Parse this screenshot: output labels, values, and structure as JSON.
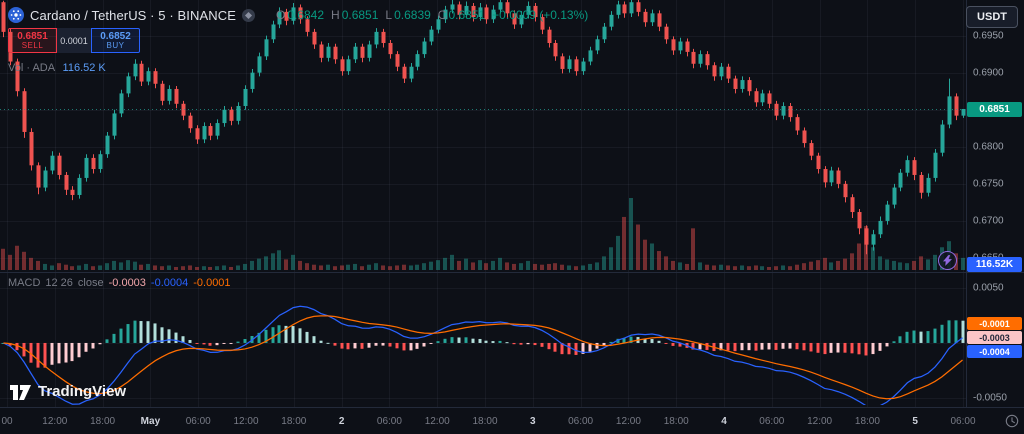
{
  "header": {
    "symbol_title": "Cardano / TetherUS · 5 · BINANCE",
    "ohlc_labels": {
      "o": "O",
      "h": "H",
      "l": "L",
      "c": "C"
    },
    "ohlc_values": {
      "o": "0.6842",
      "h": "0.6851",
      "l": "0.6839",
      "c": "0.6851"
    },
    "change": "+0.0009 (+0.13%)",
    "currency_button_label": "USDT"
  },
  "trade_panel": {
    "sell_price": "0.6851",
    "sell_label": "SELL",
    "spread": "0.0001",
    "buy_price": "0.6852",
    "buy_label": "BUY"
  },
  "volume_row": {
    "label": "Vol · ADA",
    "value": "116.52 K"
  },
  "macd_row": {
    "title": "MACD",
    "params": "12 26",
    "source": "close",
    "hist": "-0.0003",
    "macd": "-0.0004",
    "signal": "-0.0001"
  },
  "axis_badges": {
    "last_price": "0.6851",
    "volume": "116.52K",
    "signal": "-0.0001",
    "hist": "-0.0003",
    "macd": "-0.0004"
  },
  "watermark_text": "TradingView",
  "colors": {
    "background": "#0d1017",
    "grid": "rgba(151,166,195,0.07)",
    "axis_text": "#9aa0aa",
    "axis_text_major": "#cfd3dc",
    "muted_text": "#787b86",
    "title_text": "#dfe2e8",
    "up": "#26a69a",
    "down": "#ef5350",
    "up_text": "#089981",
    "sell": "#f23645",
    "buy_border": "#2962ff",
    "buy_text": "#5b9cf6",
    "spread_bg": "#1b2130",
    "volume_value": "#5b9cf6",
    "volume_badge_bg": "#2962ff",
    "last_price_badge_bg": "#089981",
    "macd_line": "#2962ff",
    "signal_line": "#ff6d00",
    "hist_grow_above": "#26a69a",
    "hist_fall_above": "#b2dfdb",
    "hist_fall_below": "#ff5252",
    "hist_grow_below": "#ffcdd2",
    "hist_value_text": "#f2a6ab",
    "signal_badge_bg": "#ff6d00",
    "hist_badge_bg": "#fbc4c6",
    "hist_badge_text": "#23283a",
    "macd_badge_bg": "#2962ff",
    "separator": "#232a3a",
    "last_price_line": "rgba(38,166,154,0.7)",
    "vol_up": "rgba(38,166,154,0.45)",
    "vol_down": "rgba(239,83,80,0.45)",
    "watermark": "rgba(255,255,255,0.95)",
    "purple_accent": "#9069e0"
  },
  "chart_data": {
    "type": "candlestick",
    "title": "Cardano / TetherUS",
    "interval": "5",
    "exchange": "BINANCE",
    "last_price": 0.6851,
    "ohlc_current": {
      "open": 0.6842,
      "high": 0.6851,
      "low": 0.6839,
      "close": 0.6851,
      "change": 0.0009,
      "change_pct": 0.13
    },
    "volume_current": "116.52 K",
    "indicator": {
      "name": "MACD",
      "fast": 12,
      "slow": 26,
      "smoothing": 9,
      "last_hist": -0.0003,
      "last_macd": -0.0004,
      "last_signal": -0.0001
    },
    "price_axis": {
      "top": 0.6998,
      "bottom": 0.66338,
      "labels": [
        {
          "text": "0.6950",
          "value": 0.695
        },
        {
          "text": "0.6900",
          "value": 0.69
        },
        {
          "text": "0.6800",
          "value": 0.68
        },
        {
          "text": "0.6750",
          "value": 0.675
        },
        {
          "text": "0.6700",
          "value": 0.67
        },
        {
          "text": "0.6650",
          "value": 0.665
        }
      ]
    },
    "indicator_axis": {
      "top": 0.00627,
      "bottom": -0.00555,
      "labels": [
        {
          "text": "0.0050",
          "value": 0.005
        },
        {
          "text": "-0.0050",
          "value": -0.005
        }
      ]
    },
    "price_gridlines": [
      0.695,
      0.69,
      0.685,
      0.68,
      0.675,
      0.67,
      0.665
    ],
    "indicator_gridlines": [
      0.005,
      0,
      -0.005
    ],
    "time_labels": [
      {
        "text": "00",
        "major": false
      },
      {
        "text": "12:00",
        "major": false
      },
      {
        "text": "18:00",
        "major": false
      },
      {
        "text": "May",
        "major": true
      },
      {
        "text": "06:00",
        "major": false
      },
      {
        "text": "12:00",
        "major": false
      },
      {
        "text": "18:00",
        "major": false
      },
      {
        "text": "2",
        "major": true
      },
      {
        "text": "06:00",
        "major": false
      },
      {
        "text": "12:00",
        "major": false
      },
      {
        "text": "18:00",
        "major": false
      },
      {
        "text": "3",
        "major": true
      },
      {
        "text": "06:00",
        "major": false
      },
      {
        "text": "12:00",
        "major": false
      },
      {
        "text": "18:00",
        "major": false
      },
      {
        "text": "4",
        "major": true
      },
      {
        "text": "06:00",
        "major": false
      },
      {
        "text": "12:00",
        "major": false
      },
      {
        "text": "18:00",
        "major": false
      },
      {
        "text": "5",
        "major": true
      },
      {
        "text": "06:00",
        "major": false
      }
    ],
    "candles": [
      [
        0.6995,
        0.6997,
        0.6948,
        0.6955
      ],
      [
        0.6955,
        0.696,
        0.691,
        0.6915
      ],
      [
        0.6915,
        0.6919,
        0.6868,
        0.6875
      ],
      [
        0.6875,
        0.6879,
        0.6812,
        0.682
      ],
      [
        0.682,
        0.6825,
        0.6768,
        0.6775
      ],
      [
        0.6775,
        0.6779,
        0.6736,
        0.6745
      ],
      [
        0.6745,
        0.6773,
        0.674,
        0.6768
      ],
      [
        0.6768,
        0.6794,
        0.6763,
        0.6788
      ],
      [
        0.6788,
        0.6792,
        0.6756,
        0.6762
      ],
      [
        0.6762,
        0.6766,
        0.6735,
        0.6742
      ],
      [
        0.6742,
        0.6747,
        0.6728,
        0.6735
      ],
      [
        0.6735,
        0.6763,
        0.673,
        0.6758
      ],
      [
        0.6758,
        0.679,
        0.6753,
        0.6785
      ],
      [
        0.6785,
        0.679,
        0.6764,
        0.677
      ],
      [
        0.677,
        0.6795,
        0.6765,
        0.679
      ],
      [
        0.679,
        0.682,
        0.6785,
        0.6815
      ],
      [
        0.6815,
        0.685,
        0.681,
        0.6845
      ],
      [
        0.6845,
        0.6877,
        0.684,
        0.6872
      ],
      [
        0.6872,
        0.69,
        0.6867,
        0.6895
      ],
      [
        0.6895,
        0.6918,
        0.689,
        0.6912
      ],
      [
        0.6912,
        0.6916,
        0.6882,
        0.6888
      ],
      [
        0.6888,
        0.6907,
        0.6883,
        0.6902
      ],
      [
        0.6902,
        0.6906,
        0.6879,
        0.6885
      ],
      [
        0.6885,
        0.6889,
        0.6856,
        0.6862
      ],
      [
        0.6862,
        0.6883,
        0.6857,
        0.6878
      ],
      [
        0.6878,
        0.6882,
        0.6852,
        0.6858
      ],
      [
        0.6858,
        0.6862,
        0.6836,
        0.6842
      ],
      [
        0.6842,
        0.6846,
        0.6819,
        0.6825
      ],
      [
        0.6825,
        0.6829,
        0.6804,
        0.681
      ],
      [
        0.681,
        0.6833,
        0.6805,
        0.6828
      ],
      [
        0.6828,
        0.6832,
        0.6809,
        0.6815
      ],
      [
        0.6815,
        0.6837,
        0.681,
        0.6832
      ],
      [
        0.6832,
        0.6855,
        0.6827,
        0.685
      ],
      [
        0.685,
        0.6854,
        0.6829,
        0.6835
      ],
      [
        0.6835,
        0.686,
        0.683,
        0.6855
      ],
      [
        0.6855,
        0.6883,
        0.685,
        0.6878
      ],
      [
        0.6878,
        0.6905,
        0.6873,
        0.69
      ],
      [
        0.69,
        0.6927,
        0.6895,
        0.6922
      ],
      [
        0.6922,
        0.695,
        0.6917,
        0.6945
      ],
      [
        0.6945,
        0.697,
        0.694,
        0.6965
      ],
      [
        0.6965,
        0.6988,
        0.696,
        0.6982
      ],
      [
        0.6982,
        0.6986,
        0.6964,
        0.697
      ],
      [
        0.697,
        0.6994,
        0.6965,
        0.6988
      ],
      [
        0.6988,
        0.6992,
        0.6966,
        0.6972
      ],
      [
        0.6972,
        0.6976,
        0.6949,
        0.6955
      ],
      [
        0.6955,
        0.6959,
        0.6932,
        0.6938
      ],
      [
        0.6938,
        0.6942,
        0.6914,
        0.692
      ],
      [
        0.692,
        0.694,
        0.6915,
        0.6935
      ],
      [
        0.6935,
        0.6939,
        0.6912,
        0.6918
      ],
      [
        0.6918,
        0.6922,
        0.6896,
        0.6902
      ],
      [
        0.6902,
        0.6923,
        0.6897,
        0.6918
      ],
      [
        0.6918,
        0.694,
        0.6913,
        0.6935
      ],
      [
        0.6935,
        0.6939,
        0.6914,
        0.692
      ],
      [
        0.692,
        0.6943,
        0.6915,
        0.6938
      ],
      [
        0.6938,
        0.696,
        0.6933,
        0.6955
      ],
      [
        0.6955,
        0.6959,
        0.6934,
        0.694
      ],
      [
        0.694,
        0.6944,
        0.6919,
        0.6925
      ],
      [
        0.6925,
        0.6929,
        0.6902,
        0.6908
      ],
      [
        0.6908,
        0.6912,
        0.6886,
        0.6892
      ],
      [
        0.6892,
        0.6913,
        0.6887,
        0.6908
      ],
      [
        0.6908,
        0.693,
        0.6903,
        0.6925
      ],
      [
        0.6925,
        0.6947,
        0.692,
        0.6942
      ],
      [
        0.6942,
        0.6963,
        0.6937,
        0.6958
      ],
      [
        0.6958,
        0.6977,
        0.6953,
        0.6972
      ],
      [
        0.6972,
        0.699,
        0.6967,
        0.6985
      ],
      [
        0.6985,
        0.6998,
        0.698,
        0.6992
      ],
      [
        0.6992,
        0.6996,
        0.6972,
        0.6978
      ],
      [
        0.6978,
        0.6996,
        0.6973,
        0.699
      ],
      [
        0.699,
        0.6994,
        0.6969,
        0.6975
      ],
      [
        0.6975,
        0.6994,
        0.697,
        0.6988
      ],
      [
        0.6988,
        0.6992,
        0.6966,
        0.6972
      ],
      [
        0.6972,
        0.6991,
        0.6967,
        0.6985
      ],
      [
        0.6985,
        0.6998,
        0.698,
        0.6995
      ],
      [
        0.6995,
        0.6998,
        0.6974,
        0.698
      ],
      [
        0.698,
        0.6984,
        0.6959,
        0.6965
      ],
      [
        0.6965,
        0.6983,
        0.696,
        0.6978
      ],
      [
        0.6978,
        0.6996,
        0.6973,
        0.699
      ],
      [
        0.699,
        0.6994,
        0.6969,
        0.6975
      ],
      [
        0.6975,
        0.6979,
        0.6952,
        0.6958
      ],
      [
        0.6958,
        0.6962,
        0.6934,
        0.694
      ],
      [
        0.694,
        0.6944,
        0.6916,
        0.6922
      ],
      [
        0.6922,
        0.6926,
        0.6899,
        0.6905
      ],
      [
        0.6905,
        0.6923,
        0.69,
        0.6918
      ],
      [
        0.6918,
        0.6922,
        0.6896,
        0.6902
      ],
      [
        0.6902,
        0.692,
        0.6897,
        0.6915
      ],
      [
        0.6915,
        0.6935,
        0.691,
        0.693
      ],
      [
        0.693,
        0.695,
        0.6925,
        0.6945
      ],
      [
        0.6945,
        0.6967,
        0.694,
        0.6962
      ],
      [
        0.6962,
        0.6983,
        0.6957,
        0.6978
      ],
      [
        0.6978,
        0.6997,
        0.6973,
        0.6992
      ],
      [
        0.6992,
        0.6996,
        0.6974,
        0.698
      ],
      [
        0.698,
        0.6998,
        0.6975,
        0.6995
      ],
      [
        0.6995,
        0.6998,
        0.6976,
        0.6982
      ],
      [
        0.6982,
        0.6986,
        0.6962,
        0.6968
      ],
      [
        0.6968,
        0.6985,
        0.6963,
        0.698
      ],
      [
        0.698,
        0.6984,
        0.6956,
        0.6962
      ],
      [
        0.6962,
        0.6966,
        0.6939,
        0.6945
      ],
      [
        0.6945,
        0.6949,
        0.6924,
        0.693
      ],
      [
        0.693,
        0.6947,
        0.6925,
        0.6942
      ],
      [
        0.6942,
        0.6946,
        0.6922,
        0.6928
      ],
      [
        0.6928,
        0.6932,
        0.6906,
        0.6912
      ],
      [
        0.6912,
        0.693,
        0.6907,
        0.6925
      ],
      [
        0.6925,
        0.6929,
        0.6904,
        0.691
      ],
      [
        0.691,
        0.6914,
        0.6889,
        0.6895
      ],
      [
        0.6895,
        0.6913,
        0.689,
        0.6908
      ],
      [
        0.6908,
        0.6912,
        0.6886,
        0.6892
      ],
      [
        0.6892,
        0.6896,
        0.6872,
        0.6878
      ],
      [
        0.6878,
        0.6895,
        0.6873,
        0.689
      ],
      [
        0.689,
        0.6894,
        0.6869,
        0.6875
      ],
      [
        0.6875,
        0.6879,
        0.6854,
        0.686
      ],
      [
        0.686,
        0.6877,
        0.6855,
        0.6872
      ],
      [
        0.6872,
        0.6876,
        0.6852,
        0.6858
      ],
      [
        0.6858,
        0.6862,
        0.6836,
        0.6842
      ],
      [
        0.6842,
        0.686,
        0.6837,
        0.6855
      ],
      [
        0.6855,
        0.6859,
        0.6834,
        0.684
      ],
      [
        0.684,
        0.6844,
        0.6816,
        0.6822
      ],
      [
        0.6822,
        0.6826,
        0.6799,
        0.6805
      ],
      [
        0.6805,
        0.6809,
        0.6782,
        0.6788
      ],
      [
        0.6788,
        0.6792,
        0.6764,
        0.677
      ],
      [
        0.677,
        0.6774,
        0.6745,
        0.6752
      ],
      [
        0.6752,
        0.6773,
        0.6747,
        0.6768
      ],
      [
        0.6768,
        0.6772,
        0.6744,
        0.675
      ],
      [
        0.675,
        0.6754,
        0.6725,
        0.6732
      ],
      [
        0.6732,
        0.6736,
        0.6704,
        0.6712
      ],
      [
        0.6712,
        0.6716,
        0.6682,
        0.669
      ],
      [
        0.669,
        0.6694,
        0.6655,
        0.6668
      ],
      [
        0.6668,
        0.6688,
        0.666,
        0.6682
      ],
      [
        0.6682,
        0.6706,
        0.6677,
        0.67
      ],
      [
        0.67,
        0.6727,
        0.6695,
        0.6722
      ],
      [
        0.6722,
        0.675,
        0.6717,
        0.6745
      ],
      [
        0.6745,
        0.677,
        0.674,
        0.6765
      ],
      [
        0.6765,
        0.6788,
        0.676,
        0.6782
      ],
      [
        0.6782,
        0.6786,
        0.6755,
        0.6762
      ],
      [
        0.6762,
        0.6766,
        0.673,
        0.6738
      ],
      [
        0.6738,
        0.6764,
        0.6733,
        0.6758
      ],
      [
        0.6758,
        0.6797,
        0.6753,
        0.6792
      ],
      [
        0.6792,
        0.6836,
        0.6787,
        0.683
      ],
      [
        0.683,
        0.6892,
        0.6825,
        0.6868
      ],
      [
        0.6868,
        0.6872,
        0.6836,
        0.6842
      ],
      [
        0.6842,
        0.6851,
        0.6839,
        0.6851
      ]
    ],
    "volumes": [
      28,
      20,
      32,
      24,
      16,
      12,
      8,
      6,
      9,
      7,
      5,
      6,
      8,
      5,
      6,
      9,
      12,
      10,
      13,
      11,
      7,
      8,
      6,
      5,
      6,
      4,
      5,
      6,
      4,
      5,
      4,
      5,
      6,
      4,
      6,
      8,
      12,
      15,
      18,
      22,
      26,
      14,
      20,
      12,
      9,
      7,
      6,
      7,
      5,
      6,
      7,
      8,
      5,
      7,
      9,
      6,
      5,
      6,
      7,
      6,
      7,
      9,
      11,
      13,
      16,
      20,
      12,
      15,
      10,
      13,
      9,
      12,
      16,
      10,
      8,
      9,
      12,
      8,
      7,
      8,
      9,
      7,
      6,
      5,
      6,
      8,
      10,
      18,
      30,
      45,
      70,
      95,
      60,
      40,
      35,
      25,
      18,
      12,
      10,
      8,
      55,
      10,
      7,
      6,
      7,
      6,
      5,
      6,
      5,
      6,
      5,
      4,
      5,
      6,
      5,
      7,
      9,
      11,
      13,
      16,
      10,
      12,
      15,
      22,
      35,
      58,
      30,
      18,
      14,
      12,
      10,
      9,
      12,
      18,
      14,
      20,
      30,
      38,
      22,
      16
    ]
  }
}
